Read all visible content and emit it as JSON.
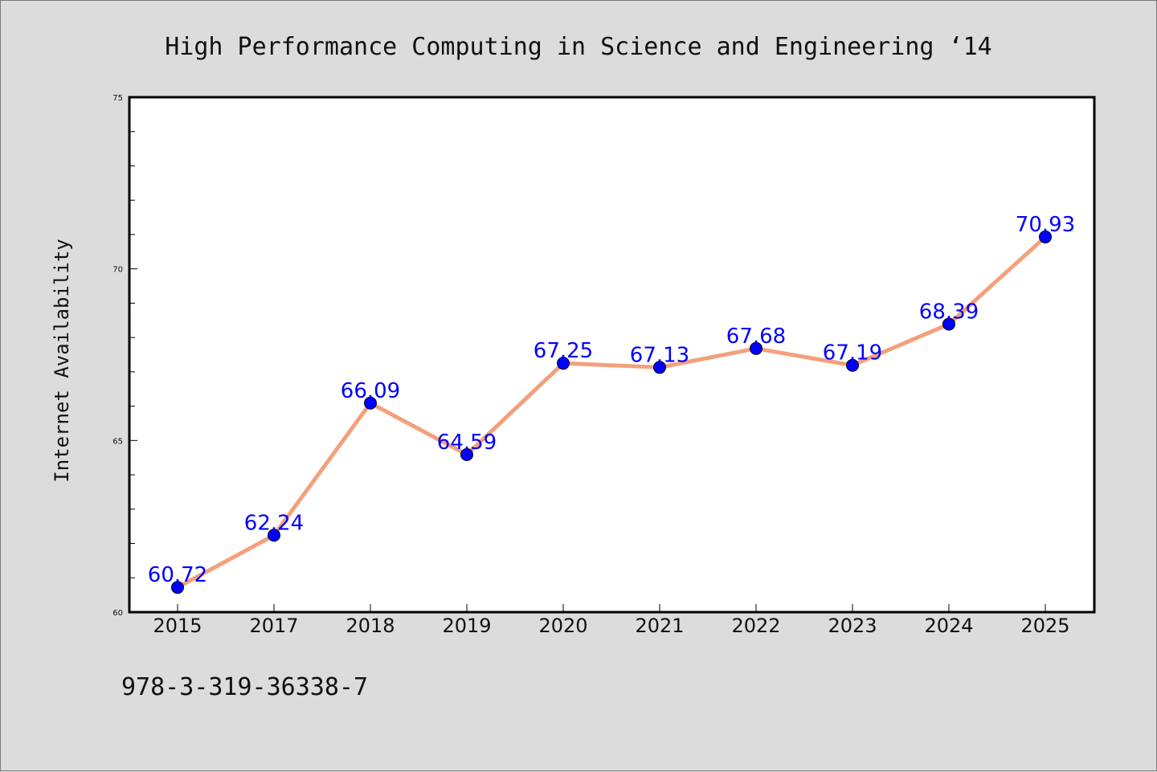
{
  "chart_data": {
    "type": "line",
    "title": "High Performance Computing in Science and Engineering  ‘14",
    "xlabel": "",
    "ylabel": "Internet Availability",
    "categories": [
      "2015",
      "2017",
      "2018",
      "2019",
      "2020",
      "2021",
      "2022",
      "2023",
      "2024",
      "2025"
    ],
    "series": [
      {
        "values": [
          60.72,
          62.24,
          66.09,
          64.59,
          67.25,
          67.13,
          67.68,
          67.19,
          68.39,
          70.93
        ],
        "line_color": "#f4a07c",
        "marker_color": "#0000ff"
      }
    ],
    "data_labels": [
      "60.72",
      "62.24",
      "66.09",
      "64.59",
      "67.25",
      "67.13",
      "67.68",
      "67.19",
      "68.39",
      "70.93"
    ],
    "ylim": [
      60,
      75
    ],
    "yticks": [
      "60",
      "65",
      "70",
      "75"
    ],
    "grid": false,
    "legend": "none"
  },
  "footer": {
    "isbn": "978-3-319-36338-7"
  },
  "colors": {
    "background": "#dcdcdc",
    "plot_background": "#ffffff",
    "label_color": "#0000ff"
  }
}
